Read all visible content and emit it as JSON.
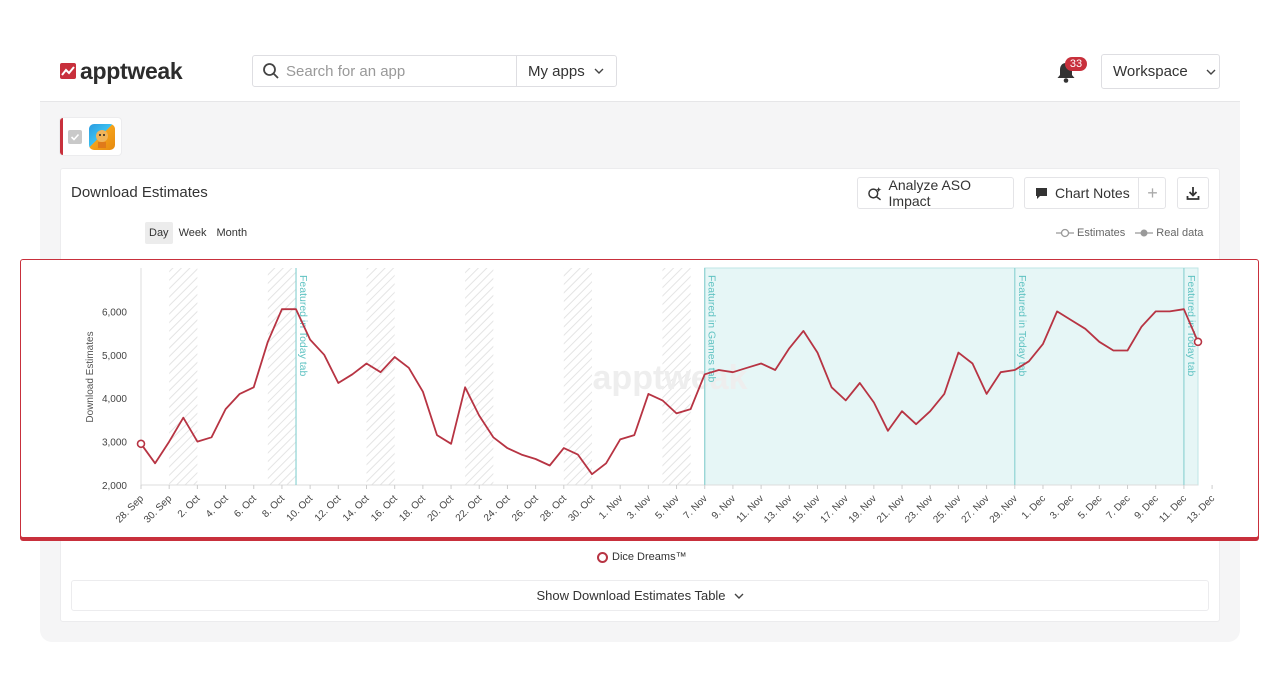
{
  "header": {
    "logo_text": "apptweak",
    "search_placeholder": "Search for an app",
    "my_apps_label": "My apps",
    "notifications_count": "33",
    "workspace_label": "Workspace"
  },
  "selected_app": {
    "checked": true
  },
  "panel": {
    "title": "Download Estimates",
    "analyze_label": "Analyze ASO Impact",
    "chart_notes_label": "Chart Notes",
    "periods": [
      "Day",
      "Week",
      "Month"
    ],
    "active_period": "Day",
    "legend_estimates": "Estimates",
    "legend_real": "Real data",
    "series_legend": "Dice Dreams™",
    "table_toggle_label": "Show Download Estimates Table",
    "watermark": "apptweak"
  },
  "chart_data": {
    "type": "line",
    "ylabel": "Download Estimates",
    "yticks": [
      2000,
      3000,
      4000,
      5000,
      6000
    ],
    "ytick_labels": [
      "2,000",
      "3,000",
      "4,000",
      "5,000",
      "6,000"
    ],
    "ylim": [
      2000,
      7000
    ],
    "start_date": "2023-09-28",
    "xtick_labels": [
      "28. Sep",
      "30. Sep",
      "2. Oct",
      "4. Oct",
      "6. Oct",
      "8. Oct",
      "10. Oct",
      "12. Oct",
      "14. Oct",
      "16. Oct",
      "18. Oct",
      "20. Oct",
      "22. Oct",
      "24. Oct",
      "26. Oct",
      "28. Oct",
      "30. Oct",
      "1. Nov",
      "3. Nov",
      "5. Nov",
      "7. Nov",
      "9. Nov",
      "11. Nov",
      "13. Nov",
      "15. Nov",
      "17. Nov",
      "19. Nov",
      "21. Nov",
      "23. Nov",
      "25. Nov",
      "27. Nov",
      "29. Nov",
      "1. Dec",
      "3. Dec",
      "5. Dec",
      "7. Dec",
      "9. Dec",
      "11. Dec",
      "13. Dec"
    ],
    "series": [
      {
        "name": "Dice Dreams™",
        "color": "#b73443",
        "values": [
          2950,
          2500,
          3000,
          3550,
          3000,
          3100,
          3750,
          4100,
          4250,
          5300,
          6050,
          6050,
          5350,
          5000,
          4350,
          4550,
          4800,
          4600,
          4950,
          4700,
          4150,
          3150,
          2950,
          4250,
          3600,
          3100,
          2850,
          2700,
          2600,
          2450,
          2850,
          2700,
          2250,
          2500,
          3050,
          3150,
          4100,
          3950,
          3650,
          3750,
          4550,
          4650,
          4600,
          4700,
          4800,
          4650,
          5150,
          5550,
          5050,
          4250,
          3950,
          4350,
          3900,
          3250,
          3700,
          3400,
          3700,
          4100,
          5050,
          4800,
          4100,
          4600,
          4650,
          4850,
          5250,
          6000,
          5800,
          5600,
          5300,
          5100,
          5100,
          5650,
          6000,
          6000,
          6050,
          5300
        ]
      }
    ],
    "weekend_bands": [
      [
        2,
        4
      ],
      [
        9,
        11
      ],
      [
        16,
        18
      ],
      [
        23,
        25
      ],
      [
        30,
        32
      ],
      [
        37,
        39
      ]
    ],
    "featured_bands": [
      [
        40,
        75
      ]
    ],
    "annotations": [
      {
        "index": 11,
        "label": "Featured in Today tab"
      },
      {
        "index": 40,
        "label": "Featured in Games tab"
      },
      {
        "index": 62,
        "label": "Featured in Today tab"
      },
      {
        "index": 74,
        "label": "Featured in Today tab"
      }
    ],
    "grid": false,
    "legend_position": "bottom-center"
  }
}
